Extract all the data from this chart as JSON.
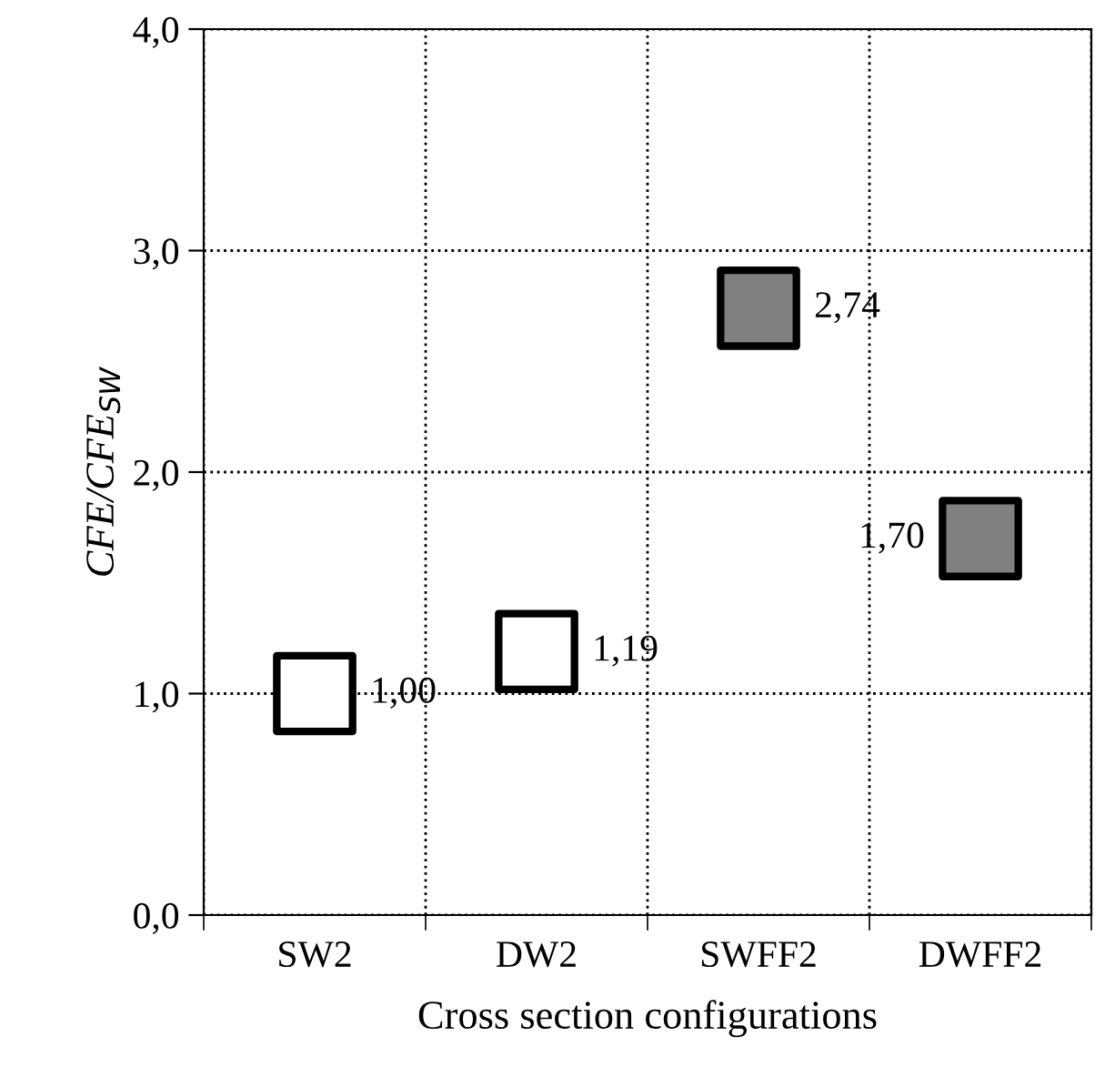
{
  "chart_data": {
    "type": "scatter",
    "xlabel": "Cross section configurations",
    "ylabel": "CFE/CFE$_{SW}$",
    "categories": [
      "SW2",
      "DW2",
      "SWFF2",
      "DWFF2"
    ],
    "values": [
      1.0,
      1.19,
      2.74,
      1.7
    ],
    "colors": [
      "#ffffff",
      "#ffffff",
      "#808080",
      "#808080"
    ],
    "value_labels": [
      "1,00",
      "1,19",
      "2,74",
      "1,70"
    ],
    "marker": "square",
    "ylim": [
      0,
      4
    ],
    "yticks": [
      {
        "value": 0,
        "label": "0,0"
      },
      {
        "value": 1,
        "label": "1,0"
      },
      {
        "value": 2,
        "label": "2,0"
      },
      {
        "value": 3,
        "label": "3,0"
      },
      {
        "value": 4,
        "label": "4,0"
      }
    ],
    "grid": true
  }
}
